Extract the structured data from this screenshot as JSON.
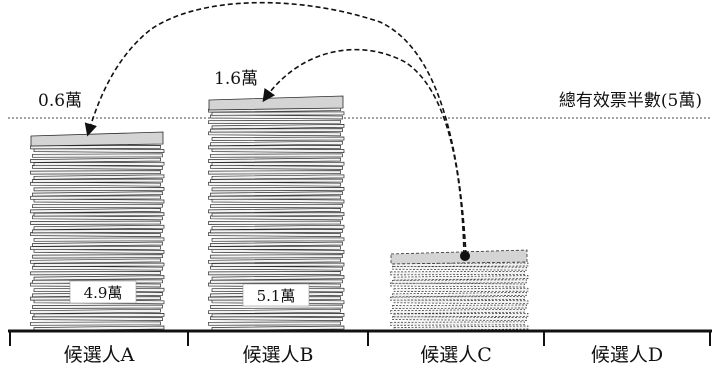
{
  "threshold": {
    "label": "總有效票半數(5萬)"
  },
  "candidates": [
    {
      "label": "候選人A",
      "stack_label": "4.9萬",
      "top_label": "0.6萬"
    },
    {
      "label": "候選人B",
      "stack_label": "5.1萬",
      "top_label": "1.6萬"
    },
    {
      "label": "候選人C"
    },
    {
      "label": "候選人D"
    }
  ],
  "colors": {
    "paper_edge": "#2b2b2b",
    "paper_face": "#f2f2f2",
    "top_sheet": "#d4d4d4",
    "ink": "#111111"
  }
}
